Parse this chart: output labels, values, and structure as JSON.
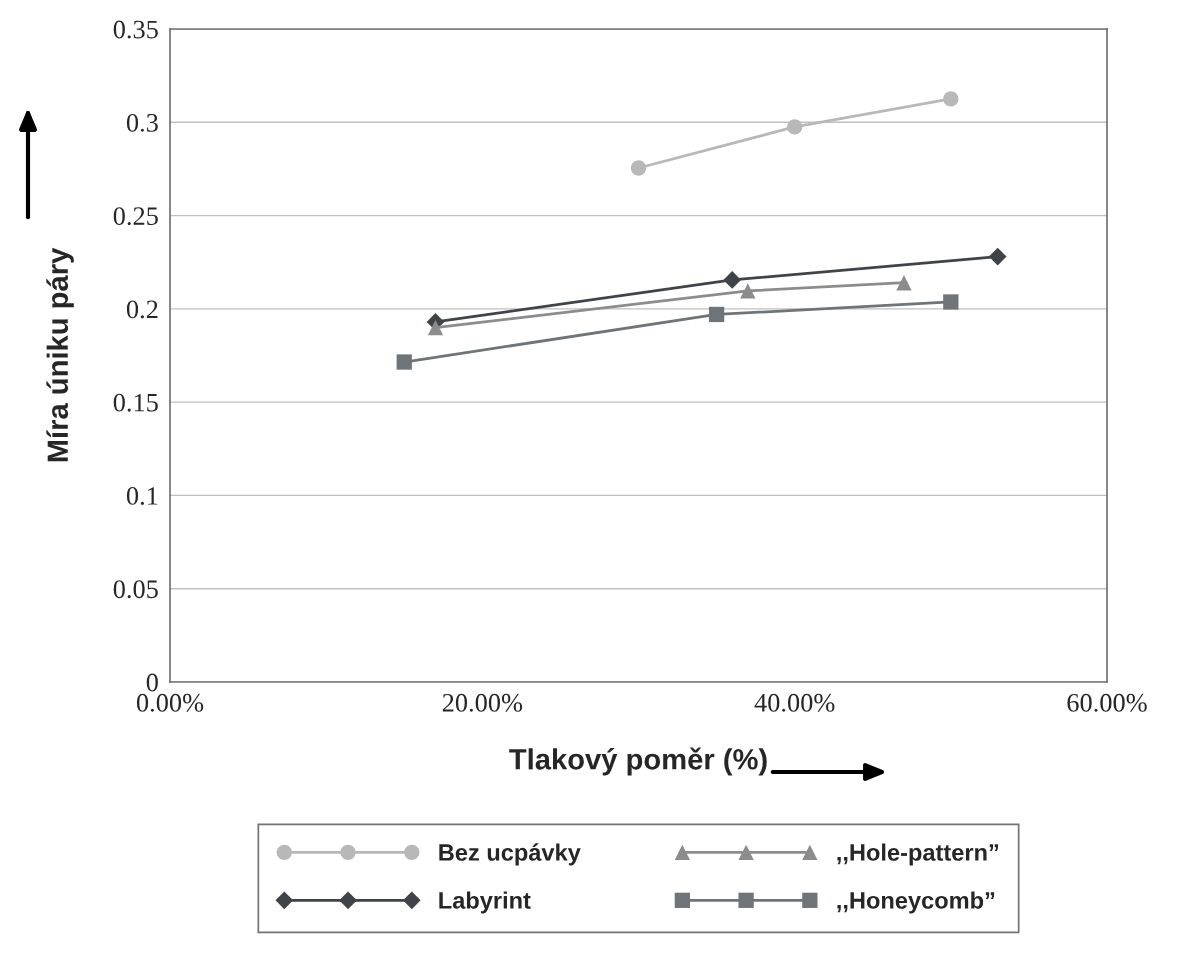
{
  "chart_data": {
    "type": "line",
    "xlabel": "Tlakový poměr (%)",
    "ylabel": "Míra úniku páry",
    "xlim": [
      0,
      0.6
    ],
    "xticks": [
      {
        "value": 0,
        "label": "0.00%"
      },
      {
        "value": 0.2,
        "label": "20.00%"
      },
      {
        "value": 0.4,
        "label": "40.00%"
      },
      {
        "value": 0.6,
        "label": "60.00%"
      }
    ],
    "ylim": [
      0,
      0.35
    ],
    "yticks": [
      {
        "value": 0,
        "label": "0"
      },
      0.05,
      0.1,
      0.15,
      0.2,
      0.25,
      0.3,
      0.35
    ],
    "grid": "y",
    "legend": "bottom",
    "series": [
      {
        "name": "Bez ucpávky",
        "color": "#b8b8b8",
        "marker": "circle",
        "x": [
          0.3,
          0.4,
          0.5
        ],
        "values": [
          0.2755,
          0.2975,
          0.3125
        ]
      },
      {
        "name": "Labyrint",
        "color": "#404448",
        "marker": "diamond",
        "x": [
          0.17,
          0.36,
          0.53
        ],
        "values": [
          0.193,
          0.2155,
          0.228
        ]
      },
      {
        "name": ",,Hole-pattern”",
        "color": "#8c8c8c",
        "marker": "triangle",
        "x": [
          0.17,
          0.37,
          0.47
        ],
        "values": [
          0.19,
          0.2096,
          0.214
        ]
      },
      {
        "name": ",,Honeycomb”",
        "color": "#6e7478",
        "marker": "square",
        "x": [
          0.15,
          0.35,
          0.5
        ],
        "values": [
          0.1715,
          0.197,
          0.2037
        ]
      }
    ]
  }
}
